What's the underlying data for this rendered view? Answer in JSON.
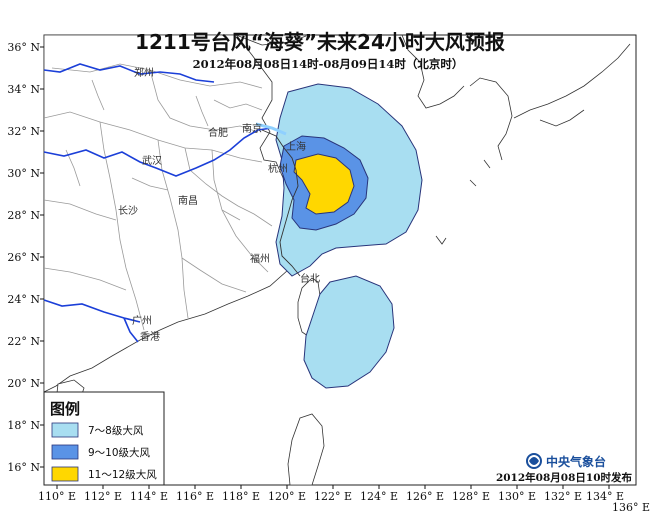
{
  "title": "1211号台风“海葵”未来24小时大风预报",
  "subtitle": "2012年08月08日14时-08月09日14时（北京时）",
  "colors": {
    "ocean": "#ffffff",
    "land_border": "#999999",
    "river": "#1b3fd8",
    "coast": "#333333",
    "wind_7_8": "#a8def1",
    "wind_9_10": "#5a93e6",
    "wind_11_12": "#ffd700",
    "zone_stroke": "#28347a"
  },
  "axes": {
    "lon_labels": [
      "110° E",
      "112° E",
      "114° E",
      "116° E",
      "118° E",
      "120° E",
      "122° E",
      "124° E",
      "126° E",
      "128° E",
      "130° E",
      "132° E",
      "134° E",
      "136° E"
    ],
    "lat_labels": [
      "36° N",
      "34° N",
      "32° N",
      "30° N",
      "28° N",
      "26° N",
      "24° N",
      "22° N",
      "20° N",
      "18° N",
      "16° N"
    ]
  },
  "cities": [
    "郑州",
    "合肥",
    "武汉",
    "南京",
    "上海",
    "杭州",
    "南昌",
    "长沙",
    "福州",
    "台北",
    "广州",
    "香港"
  ],
  "legend": {
    "title": "图例",
    "items": [
      {
        "label": "7～8级大风",
        "color": "#a8def1"
      },
      {
        "label": "9～10级大风",
        "color": "#5a93e6"
      },
      {
        "label": "11～12级大风",
        "color": "#ffd700"
      }
    ]
  },
  "agency": {
    "logo_icon": "cma-swirl-icon",
    "name": "中央气象台"
  },
  "issued": "2012年08月08日10时发布"
}
